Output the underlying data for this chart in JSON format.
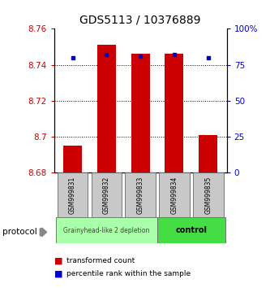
{
  "title": "GDS5113 / 10376889",
  "samples": [
    "GSM999831",
    "GSM999832",
    "GSM999833",
    "GSM999834",
    "GSM999835"
  ],
  "red_values": [
    8.695,
    8.751,
    8.746,
    8.746,
    8.701
  ],
  "blue_values": [
    80,
    82,
    81,
    82,
    80
  ],
  "ylim_left": [
    8.68,
    8.76
  ],
  "ylim_right": [
    0,
    100
  ],
  "yticks_left": [
    8.68,
    8.7,
    8.72,
    8.74,
    8.76
  ],
  "ytick_labels_left": [
    "8.68",
    "8.7",
    "8.72",
    "8.74",
    "8.76"
  ],
  "yticks_right": [
    0,
    25,
    50,
    75,
    100
  ],
  "ytick_labels_right": [
    "0",
    "25",
    "50",
    "75",
    "100%"
  ],
  "bar_bottom": 8.68,
  "bar_color": "#cc0000",
  "dot_color": "#0000cc",
  "group0_label": "Grainyhead-like 2 depletion",
  "group0_samples": [
    0,
    1,
    2
  ],
  "group0_color": "#aaffaa",
  "group1_label": "control",
  "group1_samples": [
    3,
    4
  ],
  "group1_color": "#44dd44",
  "protocol_label": "protocol",
  "legend_red": "transformed count",
  "legend_blue": "percentile rank within the sample",
  "title_fontsize": 10,
  "tick_label_color_left": "#cc0000",
  "tick_label_color_right": "#0000cc",
  "bar_width": 0.55
}
